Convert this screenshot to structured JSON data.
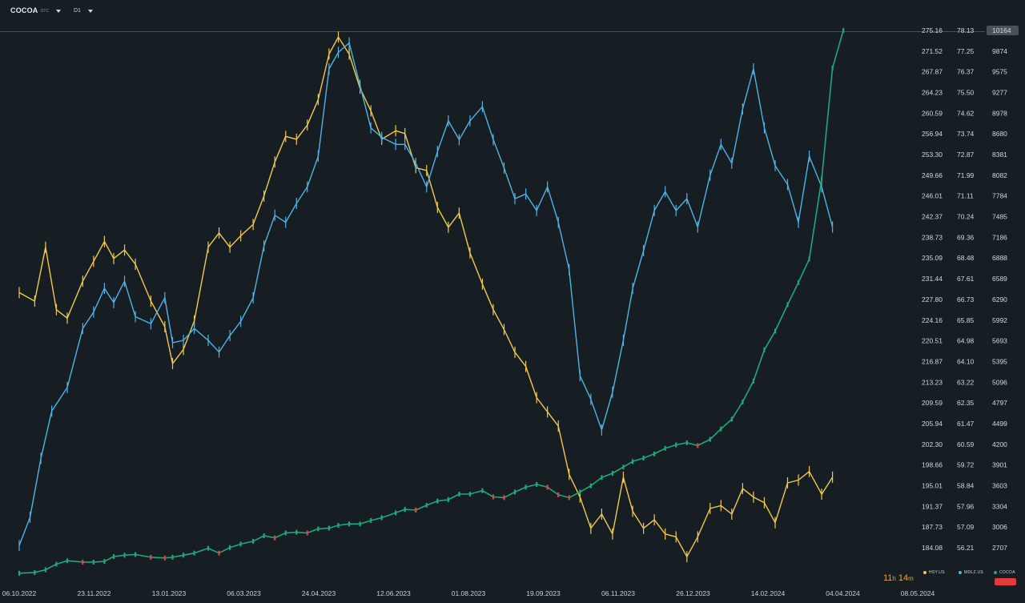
{
  "header": {
    "symbol": "COCOA",
    "symbol_suffix": "OTC",
    "timeframe": "D1"
  },
  "countdown": {
    "hours": "11",
    "hours_unit": "h",
    "minutes": "14",
    "minutes_unit": "m"
  },
  "legend": {
    "items": [
      {
        "label": "HSY.US",
        "color": "#f2c94c"
      },
      {
        "label": "MDLZ.US",
        "color": "#4fb3e6"
      },
      {
        "label": "COCOA",
        "color": "#1fa87a"
      }
    ],
    "accent_box_color": "#e23b3b"
  },
  "colors": {
    "background": "#161e23",
    "hsy": "#f2c94c",
    "mdlz": "#4fb3e6",
    "cocoa_up": "#1fa87a",
    "cocoa_down": "#e0434f",
    "current_price_badge": "#4a5259"
  },
  "chart_data": {
    "type": "line",
    "title": "",
    "x_labels": [
      "06.10.2022",
      "23.11.2022",
      "13.01.2023",
      "06.03.2023",
      "24.04.2023",
      "12.06.2023",
      "01.08.2023",
      "19.09.2023",
      "06.11.2023",
      "26.12.2023",
      "14.02.2024",
      "04.04.2024",
      "08.05.2024"
    ],
    "y_axis_hsy": {
      "ticks": [
        "275.16",
        "271.52",
        "267.87",
        "264.23",
        "260.59",
        "256.94",
        "253.30",
        "249.66",
        "246.01",
        "242.37",
        "238.73",
        "235.09",
        "231.44",
        "227.80",
        "224.16",
        "220.51",
        "216.87",
        "213.23",
        "209.59",
        "205.94",
        "202.30",
        "198.66",
        "195.01",
        "191.37",
        "187.73",
        "184.08"
      ],
      "range": [
        184.08,
        275.16
      ]
    },
    "y_axis_mdlz": {
      "ticks": [
        "78.13",
        "77.25",
        "76.37",
        "75.50",
        "74.62",
        "73.74",
        "72.87",
        "71.99",
        "71.11",
        "70.24",
        "69.36",
        "68.48",
        "67.61",
        "66.73",
        "65.85",
        "64.98",
        "64.10",
        "63.22",
        "62.35",
        "61.47",
        "60.59",
        "59.72",
        "58.84",
        "57.96",
        "57.09",
        "56.21"
      ],
      "range": [
        56.21,
        78.13
      ]
    },
    "y_axis_cocoa": {
      "ticks": [
        "10164",
        "9874",
        "9575",
        "9277",
        "8978",
        "8680",
        "8381",
        "8082",
        "7784",
        "7485",
        "7186",
        "6888",
        "6589",
        "6290",
        "5992",
        "5693",
        "5395",
        "5096",
        "4797",
        "4499",
        "4200",
        "3901",
        "3603",
        "3304",
        "3006",
        "2707"
      ],
      "range": [
        2707,
        10164
      ],
      "current_value": "10164"
    },
    "grid": false,
    "legend_position": "bottom-right",
    "series": [
      {
        "name": "HSY.US",
        "axis": "hsy",
        "color": "#f2c94c",
        "points": [
          [
            "06.10.2022",
            229.0
          ],
          [
            "16.10.2022",
            227.5
          ],
          [
            "23.10.2022",
            237.0
          ],
          [
            "30.10.2022",
            226.0
          ],
          [
            "06.11.2022",
            224.5
          ],
          [
            "16.11.2022",
            231.0
          ],
          [
            "23.11.2022",
            234.5
          ],
          [
            "30.11.2022",
            238.0
          ],
          [
            "06.12.2022",
            235.0
          ],
          [
            "13.12.2022",
            236.5
          ],
          [
            "20.12.2022",
            234.0
          ],
          [
            "30.12.2022",
            227.5
          ],
          [
            "08.01.2023",
            223.0
          ],
          [
            "13.01.2023",
            216.5
          ],
          [
            "20.01.2023",
            219.0
          ],
          [
            "27.01.2023",
            224.0
          ],
          [
            "05.02.2023",
            237.0
          ],
          [
            "12.02.2023",
            239.5
          ],
          [
            "19.02.2023",
            237.0
          ],
          [
            "26.02.2023",
            239.0
          ],
          [
            "06.03.2023",
            241.0
          ],
          [
            "13.03.2023",
            246.0
          ],
          [
            "20.03.2023",
            252.0
          ],
          [
            "27.03.2023",
            256.5
          ],
          [
            "03.04.2023",
            256.0
          ],
          [
            "10.04.2023",
            258.5
          ],
          [
            "17.04.2023",
            263.0
          ],
          [
            "24.04.2023",
            271.0
          ],
          [
            "30.04.2023",
            274.0
          ],
          [
            "07.05.2023",
            271.0
          ],
          [
            "14.05.2023",
            265.0
          ],
          [
            "21.05.2023",
            261.0
          ],
          [
            "28.05.2023",
            256.0
          ],
          [
            "06.06.2023",
            257.5
          ],
          [
            "12.06.2023",
            257.0
          ],
          [
            "19.06.2023",
            251.0
          ],
          [
            "26.06.2023",
            250.5
          ],
          [
            "03.07.2023",
            244.0
          ],
          [
            "10.07.2023",
            240.5
          ],
          [
            "17.07.2023",
            243.0
          ],
          [
            "24.07.2023",
            236.0
          ],
          [
            "01.08.2023",
            230.5
          ],
          [
            "08.08.2023",
            226.0
          ],
          [
            "15.08.2023",
            222.5
          ],
          [
            "22.08.2023",
            218.5
          ],
          [
            "29.08.2023",
            216.0
          ],
          [
            "05.09.2023",
            210.5
          ],
          [
            "12.09.2023",
            208.0
          ],
          [
            "19.09.2023",
            205.5
          ],
          [
            "26.09.2023",
            197.0
          ],
          [
            "03.10.2023",
            193.0
          ],
          [
            "10.10.2023",
            187.5
          ],
          [
            "17.10.2023",
            190.0
          ],
          [
            "24.10.2023",
            186.5
          ],
          [
            "31.10.2023",
            196.5
          ],
          [
            "06.11.2023",
            190.5
          ],
          [
            "13.11.2023",
            187.5
          ],
          [
            "20.11.2023",
            189.0
          ],
          [
            "27.11.2023",
            186.5
          ],
          [
            "04.12.2023",
            186.0
          ],
          [
            "11.12.2023",
            182.5
          ],
          [
            "18.12.2023",
            186.0
          ],
          [
            "26.12.2023",
            191.0
          ],
          [
            "02.01.2024",
            191.5
          ],
          [
            "09.01.2024",
            190.0
          ],
          [
            "16.01.2024",
            194.5
          ],
          [
            "23.01.2024",
            193.0
          ],
          [
            "30.01.2024",
            192.0
          ],
          [
            "06.02.2024",
            188.5
          ],
          [
            "14.02.2024",
            195.5
          ],
          [
            "21.02.2024",
            196.0
          ],
          [
            "28.02.2024",
            197.5
          ],
          [
            "07.03.2024",
            193.5
          ],
          [
            "14.03.2024",
            196.5
          ]
        ]
      },
      {
        "name": "MDLZ.US",
        "axis": "mdlz",
        "color": "#4fb3e6",
        "points": [
          [
            "06.10.2022",
            56.3
          ],
          [
            "13.10.2022",
            57.5
          ],
          [
            "20.10.2022",
            60.0
          ],
          [
            "27.10.2022",
            62.0
          ],
          [
            "06.11.2022",
            63.0
          ],
          [
            "16.11.2022",
            65.5
          ],
          [
            "23.11.2022",
            66.2
          ],
          [
            "30.11.2022",
            67.2
          ],
          [
            "06.12.2022",
            66.6
          ],
          [
            "13.12.2022",
            67.5
          ],
          [
            "20.12.2022",
            66.0
          ],
          [
            "30.12.2022",
            65.7
          ],
          [
            "08.01.2023",
            66.8
          ],
          [
            "13.01.2023",
            64.9
          ],
          [
            "20.01.2023",
            65.0
          ],
          [
            "27.01.2023",
            65.5
          ],
          [
            "05.02.2023",
            65.0
          ],
          [
            "12.02.2023",
            64.5
          ],
          [
            "19.02.2023",
            65.2
          ],
          [
            "26.02.2023",
            65.8
          ],
          [
            "06.03.2023",
            66.8
          ],
          [
            "13.03.2023",
            69.0
          ],
          [
            "20.03.2023",
            70.3
          ],
          [
            "27.03.2023",
            70.0
          ],
          [
            "03.04.2023",
            70.8
          ],
          [
            "10.04.2023",
            71.5
          ],
          [
            "17.04.2023",
            72.8
          ],
          [
            "24.04.2023",
            76.5
          ],
          [
            "30.04.2023",
            77.2
          ],
          [
            "07.05.2023",
            77.6
          ],
          [
            "14.05.2023",
            75.8
          ],
          [
            "21.05.2023",
            74.0
          ],
          [
            "28.05.2023",
            73.6
          ],
          [
            "06.06.2023",
            73.3
          ],
          [
            "12.06.2023",
            73.3
          ],
          [
            "19.06.2023",
            72.5
          ],
          [
            "26.06.2023",
            71.5
          ],
          [
            "03.07.2023",
            73.0
          ],
          [
            "10.07.2023",
            74.3
          ],
          [
            "17.07.2023",
            73.5
          ],
          [
            "24.07.2023",
            74.3
          ],
          [
            "01.08.2023",
            74.9
          ],
          [
            "08.08.2023",
            73.5
          ],
          [
            "15.08.2023",
            72.3
          ],
          [
            "22.08.2023",
            71.0
          ],
          [
            "29.08.2023",
            71.2
          ],
          [
            "05.09.2023",
            70.5
          ],
          [
            "12.09.2023",
            71.5
          ],
          [
            "19.09.2023",
            70.0
          ],
          [
            "26.09.2023",
            68.0
          ],
          [
            "03.10.2023",
            63.5
          ],
          [
            "10.10.2023",
            62.5
          ],
          [
            "17.10.2023",
            61.2
          ],
          [
            "24.10.2023",
            62.8
          ],
          [
            "31.10.2023",
            65.0
          ],
          [
            "06.11.2023",
            67.2
          ],
          [
            "13.11.2023",
            68.8
          ],
          [
            "20.11.2023",
            70.5
          ],
          [
            "27.11.2023",
            71.3
          ],
          [
            "04.12.2023",
            70.5
          ],
          [
            "11.12.2023",
            71.0
          ],
          [
            "18.12.2023",
            69.8
          ],
          [
            "26.12.2023",
            72.0
          ],
          [
            "02.01.2024",
            73.3
          ],
          [
            "09.01.2024",
            72.5
          ],
          [
            "16.01.2024",
            74.8
          ],
          [
            "23.01.2024",
            76.5
          ],
          [
            "30.01.2024",
            74.0
          ],
          [
            "06.02.2024",
            72.4
          ],
          [
            "14.02.2024",
            71.6
          ],
          [
            "21.02.2024",
            70.0
          ],
          [
            "28.02.2024",
            72.8
          ],
          [
            "07.03.2024",
            71.5
          ],
          [
            "14.03.2024",
            69.8
          ]
        ]
      },
      {
        "name": "COCOA",
        "axis": "cocoa",
        "color": "#1fa87a",
        "points": [
          [
            "06.10.2022",
            2340
          ],
          [
            "16.10.2022",
            2350
          ],
          [
            "23.10.2022",
            2390
          ],
          [
            "30.10.2022",
            2470
          ],
          [
            "06.11.2022",
            2520
          ],
          [
            "16.11.2022",
            2500
          ],
          [
            "23.11.2022",
            2500
          ],
          [
            "30.11.2022",
            2510
          ],
          [
            "06.12.2022",
            2580
          ],
          [
            "13.12.2022",
            2600
          ],
          [
            "20.12.2022",
            2610
          ],
          [
            "30.12.2022",
            2570
          ],
          [
            "08.01.2023",
            2560
          ],
          [
            "13.01.2023",
            2570
          ],
          [
            "20.01.2023",
            2600
          ],
          [
            "27.01.2023",
            2630
          ],
          [
            "05.02.2023",
            2700
          ],
          [
            "12.02.2023",
            2630
          ],
          [
            "19.02.2023",
            2710
          ],
          [
            "26.02.2023",
            2760
          ],
          [
            "06.03.2023",
            2800
          ],
          [
            "13.03.2023",
            2880
          ],
          [
            "20.03.2023",
            2850
          ],
          [
            "27.03.2023",
            2920
          ],
          [
            "03.04.2023",
            2930
          ],
          [
            "10.04.2023",
            2920
          ],
          [
            "17.04.2023",
            2980
          ],
          [
            "24.04.2023",
            2990
          ],
          [
            "30.04.2023",
            3030
          ],
          [
            "07.05.2023",
            3050
          ],
          [
            "14.05.2023",
            3050
          ],
          [
            "21.05.2023",
            3100
          ],
          [
            "28.05.2023",
            3140
          ],
          [
            "06.06.2023",
            3210
          ],
          [
            "12.06.2023",
            3260
          ],
          [
            "19.06.2023",
            3250
          ],
          [
            "26.06.2023",
            3320
          ],
          [
            "03.07.2023",
            3380
          ],
          [
            "10.07.2023",
            3400
          ],
          [
            "17.07.2023",
            3480
          ],
          [
            "24.07.2023",
            3480
          ],
          [
            "01.08.2023",
            3530
          ],
          [
            "08.08.2023",
            3440
          ],
          [
            "15.08.2023",
            3430
          ],
          [
            "22.08.2023",
            3510
          ],
          [
            "29.08.2023",
            3580
          ],
          [
            "05.09.2023",
            3620
          ],
          [
            "12.09.2023",
            3580
          ],
          [
            "19.09.2023",
            3470
          ],
          [
            "26.09.2023",
            3430
          ],
          [
            "03.10.2023",
            3510
          ],
          [
            "10.10.2023",
            3600
          ],
          [
            "17.10.2023",
            3720
          ],
          [
            "24.10.2023",
            3780
          ],
          [
            "31.10.2023",
            3870
          ],
          [
            "06.11.2023",
            3950
          ],
          [
            "13.11.2023",
            4000
          ],
          [
            "20.11.2023",
            4060
          ],
          [
            "27.11.2023",
            4140
          ],
          [
            "04.12.2023",
            4190
          ],
          [
            "11.12.2023",
            4220
          ],
          [
            "18.12.2023",
            4180
          ],
          [
            "26.12.2023",
            4270
          ],
          [
            "02.01.2024",
            4420
          ],
          [
            "09.01.2024",
            4560
          ],
          [
            "16.01.2024",
            4810
          ],
          [
            "23.01.2024",
            5110
          ],
          [
            "30.01.2024",
            5560
          ],
          [
            "06.02.2024",
            5830
          ],
          [
            "14.02.2024",
            6210
          ],
          [
            "21.02.2024",
            6530
          ],
          [
            "28.02.2024",
            6870
          ],
          [
            "07.03.2024",
            8020
          ],
          [
            "14.03.2024",
            9620
          ],
          [
            "21.03.2024",
            10164
          ]
        ]
      }
    ]
  }
}
